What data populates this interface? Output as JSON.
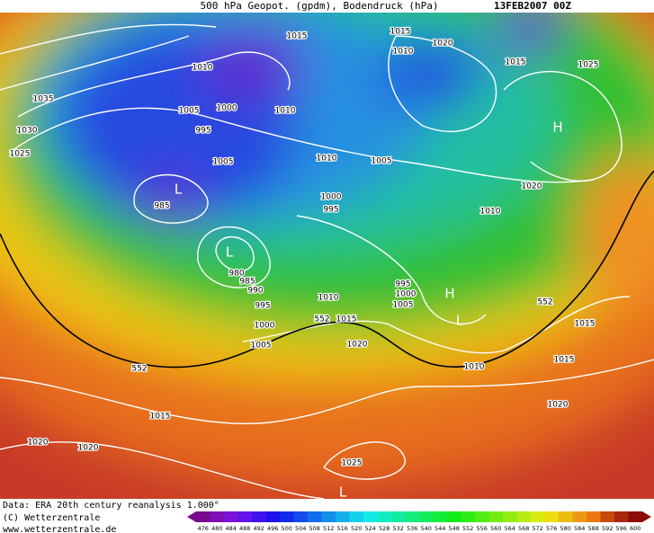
{
  "header": {
    "title": "500 hPa Geopot. (gpdm), Bodendruck (hPa)",
    "date": "13FEB2007 00Z"
  },
  "map_labels": [
    "1015",
    "1015",
    "1020",
    "1010",
    "1010",
    "1015",
    "1025",
    "1035",
    "1005",
    "1000",
    "1010",
    "1030",
    "995",
    "H",
    "1025",
    "1005",
    "1010",
    "1005",
    "L",
    "1020",
    "1000",
    "985",
    "995",
    "1010",
    "L",
    "980",
    "985",
    "995",
    "990",
    "1000",
    "H",
    "1005",
    "1010",
    "552",
    "995",
    "552",
    "1015",
    "L",
    "1015",
    "1000",
    "1005",
    "1020",
    "1015",
    "552",
    "1010",
    "1020",
    "1015",
    "1020",
    "1020",
    "1025",
    "L"
  ],
  "footer": {
    "source": "Data: ERA 20th century reanalysis 1.000°",
    "copyright": "(C) Wetterzentrale",
    "url": "www.wetterzentrale.de"
  },
  "legend": {
    "values": [
      476,
      480,
      484,
      488,
      492,
      496,
      500,
      504,
      508,
      512,
      516,
      520,
      524,
      528,
      532,
      536,
      540,
      544,
      548,
      552,
      556,
      560,
      564,
      568,
      572,
      576,
      580,
      584,
      588,
      592,
      596,
      600
    ]
  }
}
